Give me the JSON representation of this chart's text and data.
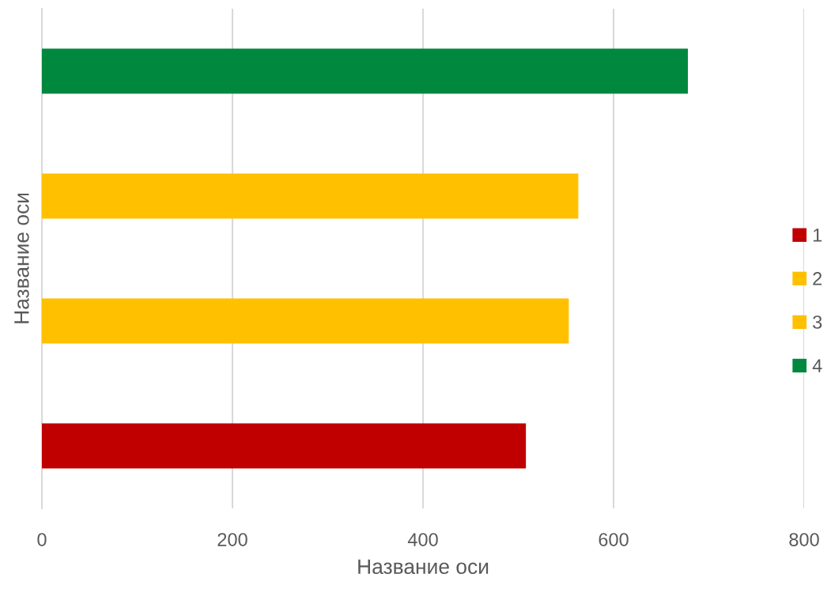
{
  "chart_data": {
    "type": "bar",
    "orientation": "horizontal",
    "stacked": true,
    "categories": [
      null,
      null,
      null,
      null
    ],
    "series": [
      {
        "name": "1",
        "color": "#c00000",
        "values": [
          null,
          null,
          null,
          508
        ]
      },
      {
        "name": "2",
        "color": "#ffc000",
        "values": [
          null,
          null,
          553,
          null
        ]
      },
      {
        "name": "3",
        "color": "#ffc000",
        "values": [
          null,
          563,
          null,
          null
        ]
      },
      {
        "name": "4",
        "color": "#00883e",
        "values": [
          678,
          null,
          null,
          null
        ]
      }
    ],
    "xlabel": "Название оси",
    "ylabel": "Название оси",
    "xlim": [
      0,
      800
    ],
    "xticks": [
      0,
      200,
      400,
      600,
      800
    ],
    "grid": "x",
    "legend": "right",
    "tick_labels": "x"
  }
}
